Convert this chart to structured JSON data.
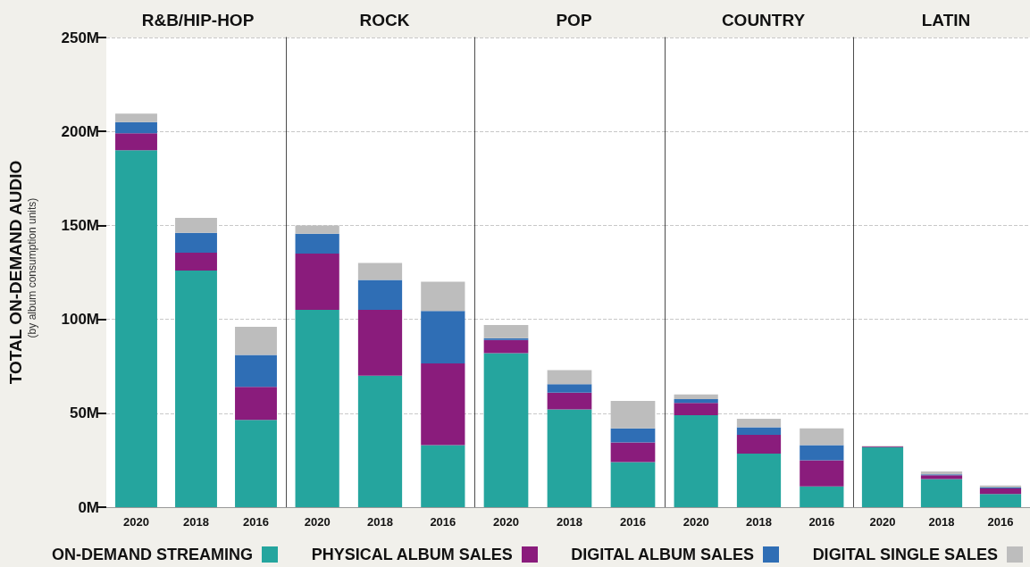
{
  "chart_data": [
    {
      "type": "bar",
      "title": "R&B/HIP-HOP",
      "ylabel": "TOTAL ON-DEMAND AUDIO",
      "annotations": [
        "(by album consumption units)"
      ],
      "categories": [
        "2020",
        "2018",
        "2016"
      ],
      "stacked": true,
      "ylim": [
        0,
        250
      ],
      "yticks": [
        {
          "value": 0,
          "label": "0M"
        },
        {
          "value": 50,
          "label": "50M"
        },
        {
          "value": 100,
          "label": "100M"
        },
        {
          "value": 150,
          "label": "150M"
        },
        {
          "value": 200,
          "label": "200M"
        },
        {
          "value": 250,
          "label": "250M"
        }
      ],
      "grid": "y",
      "legend": "bottom",
      "series": [
        {
          "name": "ON-DEMAND STREAMING",
          "color": "#25a59e",
          "values": [
            190,
            126,
            46.5
          ]
        },
        {
          "name": "PHYSICAL ALBUM SALES",
          "color": "#8a1c7c",
          "values": [
            9,
            9.5,
            17.5
          ]
        },
        {
          "name": "DIGITAL ALBUM SALES",
          "color": "#2f6eb5",
          "values": [
            6,
            10.5,
            17
          ]
        },
        {
          "name": "DIGITAL SINGLE SALES",
          "color": "#bdbdbd",
          "values": [
            4.5,
            8,
            15
          ]
        }
      ]
    },
    {
      "type": "bar",
      "title": "ROCK",
      "categories": [
        "2020",
        "2018",
        "2016"
      ],
      "stacked": true,
      "ylim": [
        0,
        250
      ],
      "yticks": [
        0,
        50,
        100,
        150,
        200,
        250
      ],
      "grid": "y",
      "tick_labels": "x",
      "series": [
        {
          "color": "#25a59e",
          "values": [
            105,
            70,
            33
          ]
        },
        {
          "color": "#8a1c7c",
          "values": [
            30,
            35,
            43.5
          ]
        },
        {
          "color": "#2f6eb5",
          "values": [
            10.5,
            16,
            28
          ]
        },
        {
          "color": "#bdbdbd",
          "values": [
            4.5,
            9,
            15.5
          ]
        }
      ]
    },
    {
      "type": "bar",
      "title": "POP",
      "categories": [
        "2020",
        "2018",
        "2016"
      ],
      "stacked": true,
      "ylim": [
        0,
        250
      ],
      "yticks": [
        0,
        50,
        100,
        150,
        200,
        250
      ],
      "grid": "y",
      "tick_labels": "x",
      "series": [
        {
          "color": "#25a59e",
          "values": [
            82,
            52,
            24
          ]
        },
        {
          "color": "#8a1c7c",
          "values": [
            7,
            9,
            10.5
          ]
        },
        {
          "color": "#2f6eb5",
          "values": [
            1,
            4.5,
            7.5
          ]
        },
        {
          "color": "#bdbdbd",
          "values": [
            7,
            7.5,
            14.5
          ]
        }
      ]
    },
    {
      "type": "bar",
      "title": "COUNTRY",
      "categories": [
        "2020",
        "2018",
        "2016"
      ],
      "stacked": true,
      "ylim": [
        0,
        250
      ],
      "yticks": [
        0,
        50,
        100,
        150,
        200,
        250
      ],
      "grid": "y",
      "tick_labels": "x",
      "series": [
        {
          "color": "#25a59e",
          "values": [
            49,
            28.5,
            11
          ]
        },
        {
          "color": "#8a1c7c",
          "values": [
            6.5,
            10,
            14
          ]
        },
        {
          "color": "#2f6eb5",
          "values": [
            2,
            4,
            8
          ]
        },
        {
          "color": "#bdbdbd",
          "values": [
            2.5,
            4.5,
            9
          ]
        }
      ]
    },
    {
      "type": "bar",
      "title": "LATIN",
      "categories": [
        "2020",
        "2018",
        "2016"
      ],
      "stacked": true,
      "ylim": [
        0,
        250
      ],
      "yticks": [
        0,
        50,
        100,
        150,
        200,
        250
      ],
      "grid": "y",
      "tick_labels": "x",
      "series": [
        {
          "color": "#25a59e",
          "values": [
            32,
            15,
            7
          ]
        },
        {
          "color": "#8a1c7c",
          "values": [
            0.3,
            2,
            3
          ]
        },
        {
          "color": "#2f6eb5",
          "values": [
            0,
            0.5,
            0.5
          ]
        },
        {
          "color": "#bdbdbd",
          "values": [
            0.2,
            1.5,
            1
          ]
        }
      ]
    }
  ]
}
